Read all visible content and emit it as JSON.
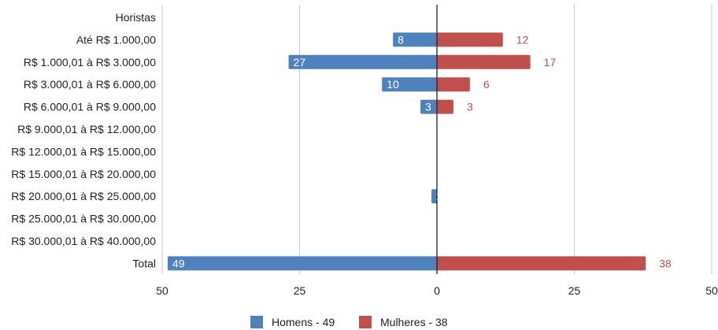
{
  "chart_data": {
    "type": "bar",
    "orientation": "horizontal",
    "layout": "diverging",
    "categories": [
      "Horistas",
      "Até R$ 1.000,00",
      "R$ 1.000,01 à R$ 3.000,00",
      "R$ 3.000,01 à R$ 6.000,00",
      "R$ 6.000,01 à R$ 9.000,00",
      "R$ 9.000,01 à R$ 12.000,00",
      "R$ 12.000,01 à R$ 15.000,00",
      "R$ 15.000,01 à R$ 20.000,00",
      "R$ 20.000,01 à R$ 25.000,00",
      "R$ 25.000,01 à R$ 30.000,00",
      "R$ 30.000,01 à R$ 40.000,00",
      "Total"
    ],
    "series": [
      {
        "name": "Homens - 49",
        "color": "#4f81bd",
        "direction": "left",
        "values": [
          null,
          8,
          27,
          10,
          3,
          null,
          null,
          null,
          1,
          null,
          null,
          49
        ]
      },
      {
        "name": "Mulheres - 38",
        "color": "#c0504d",
        "direction": "right",
        "values": [
          null,
          12,
          17,
          6,
          3,
          null,
          null,
          null,
          null,
          null,
          null,
          38
        ]
      }
    ],
    "xlim": [
      -50,
      50
    ],
    "x_ticks": [
      {
        "value": -50,
        "label": "50"
      },
      {
        "value": -25,
        "label": "25"
      },
      {
        "value": 0,
        "label": "0"
      },
      {
        "value": 25,
        "label": "25"
      },
      {
        "value": 50,
        "label": "50"
      }
    ],
    "grid": true,
    "legend_position": "bottom",
    "title": "",
    "xlabel": "",
    "ylabel": ""
  }
}
